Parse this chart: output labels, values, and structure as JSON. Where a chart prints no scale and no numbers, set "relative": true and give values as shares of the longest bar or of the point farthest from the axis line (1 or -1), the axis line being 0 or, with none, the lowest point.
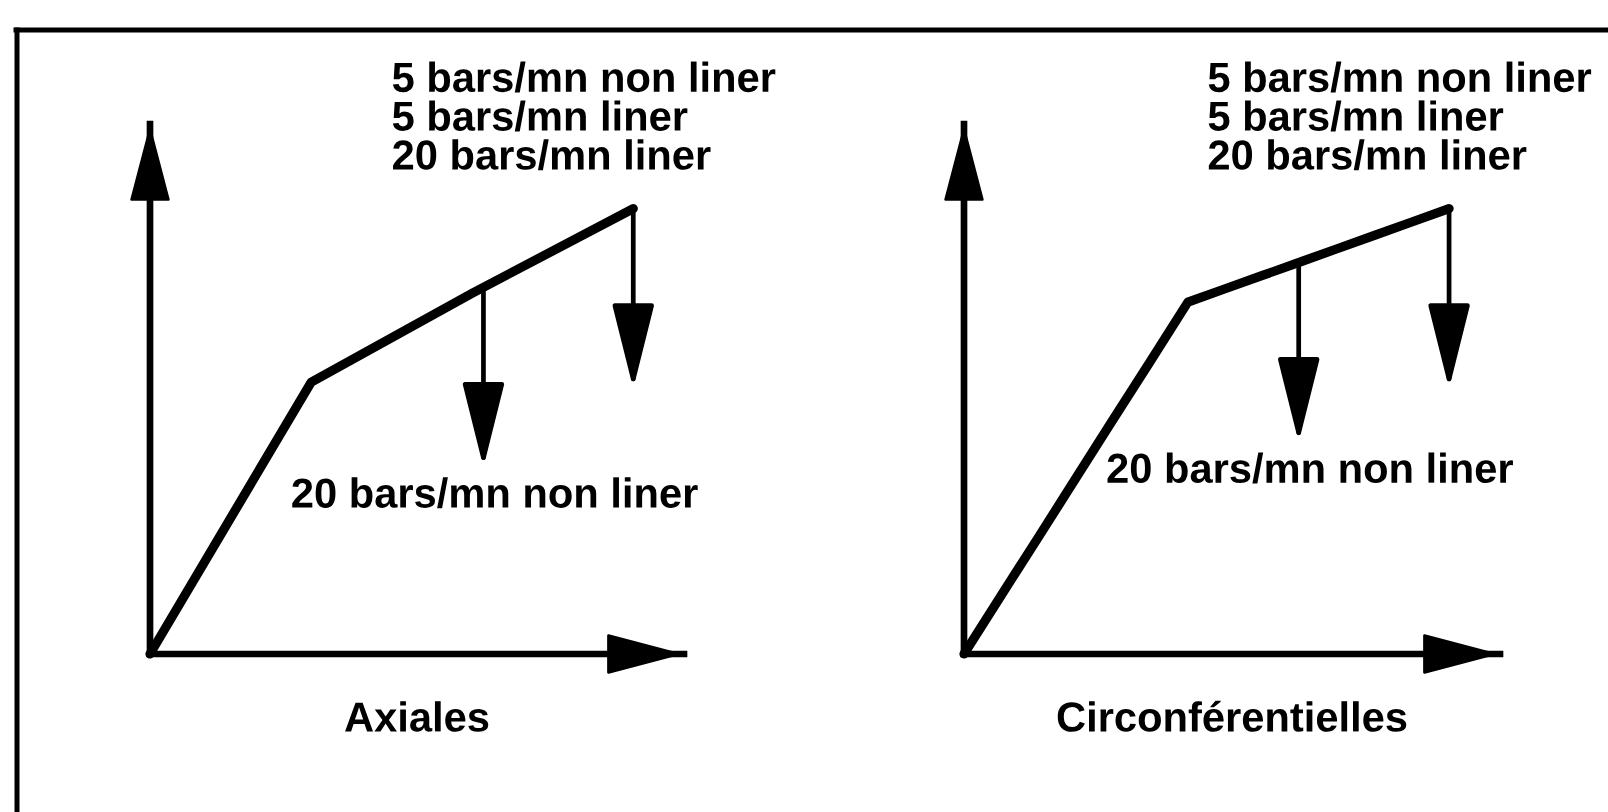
{
  "chart_data": [
    {
      "type": "line",
      "xlabel": "Axiales",
      "relative": true,
      "tick_labels": false,
      "categories": [
        null,
        null,
        null,
        null
      ],
      "series": [
        {
          "color": "#000000",
          "values": [
            0,
            0.61,
            0.81,
            1
          ]
        }
      ],
      "annotations": [
        "5 bars/mn non liner\n5 bars/mn liner\n20 bars/mn liner",
        "20 bars/mn non liner"
      ]
    },
    {
      "type": "line",
      "xlabel": "Circonférentielles",
      "relative": true,
      "tick_labels": false,
      "categories": [
        null,
        null,
        null,
        null,
        null,
        null,
        null,
        null,
        null,
        null,
        null,
        null,
        null,
        null
      ],
      "series": [
        {
          "color": "#000000",
          "values": [
            0,
            0.132,
            0.263,
            0.395,
            0.527,
            0.658,
            0.79,
            0.82,
            0.85,
            0.88,
            0.91,
            0.94,
            0.97,
            1
          ]
        }
      ],
      "annotations": [
        "5 bars/mn non liner\n5 bars/mn liner\n20 bars/mn liner",
        "20 bars/mn non liner"
      ]
    }
  ]
}
